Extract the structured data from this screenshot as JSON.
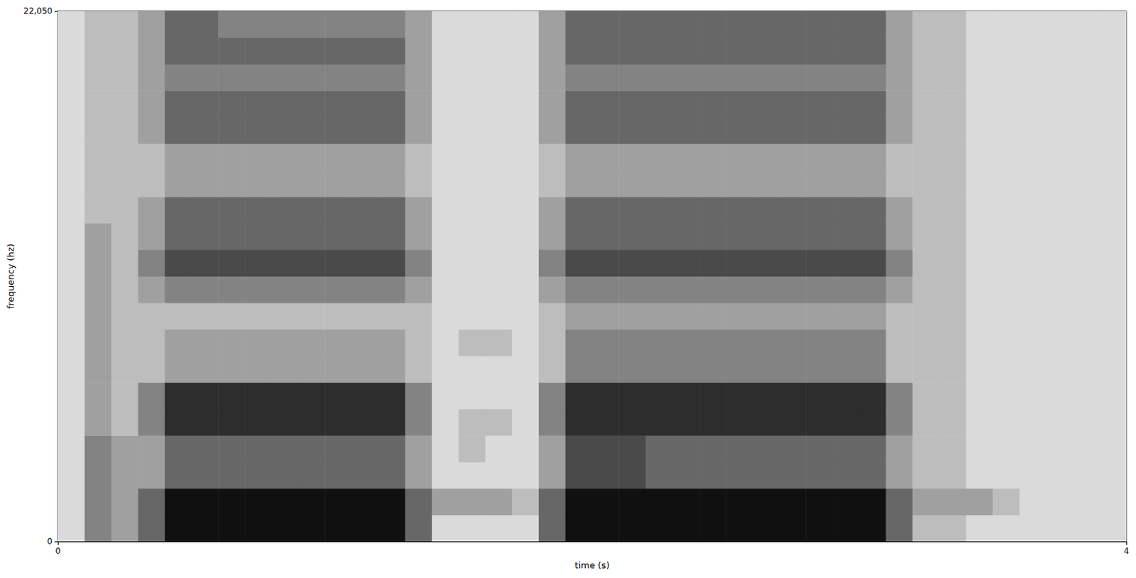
{
  "chart_data": {
    "type": "heatmap",
    "xlabel": "time (s)",
    "ylabel": "frequency (hz)",
    "xlim": [
      0,
      4
    ],
    "xticks": [
      0,
      4
    ],
    "ylim": [
      0,
      22050
    ],
    "yticks": [
      0,
      22050
    ],
    "grid": false,
    "x": [
      0,
      0.1,
      0.2,
      0.3,
      0.4,
      0.5,
      0.6,
      0.7,
      0.8,
      0.9,
      1.0,
      1.1,
      1.2,
      1.3,
      1.4,
      1.5,
      1.6,
      1.7,
      1.8,
      1.9,
      2.0,
      2.1,
      2.2,
      2.3,
      2.4,
      2.5,
      2.6,
      2.7,
      2.8,
      2.9,
      3.0,
      3.1,
      3.2,
      3.3,
      3.4,
      3.5,
      3.6,
      3.7,
      3.8,
      3.9
    ],
    "y": [
      0,
      1102.5,
      2205,
      3307.5,
      4410,
      5512.5,
      6615,
      7717.5,
      8820,
      9922.5,
      11025,
      12127.5,
      13230,
      14332.5,
      15435,
      16537.5,
      17640,
      18742.5,
      19845,
      20947.5
    ],
    "cells": [
      [
        2,
        2,
        2,
        2,
        2,
        2,
        2,
        2,
        2,
        2,
        2,
        2,
        2,
        2,
        2,
        2,
        2,
        2,
        2,
        2
      ],
      [
        5,
        5,
        5,
        5,
        4,
        4,
        4,
        4,
        4,
        4,
        4,
        4,
        3,
        3,
        3,
        3,
        3,
        3,
        3,
        3
      ],
      [
        4,
        4,
        4,
        4,
        3,
        3,
        3,
        3,
        3,
        3,
        3,
        3,
        3,
        3,
        3,
        3,
        3,
        3,
        3,
        3
      ],
      [
        6,
        6,
        4,
        4,
        5,
        5,
        3,
        3,
        3,
        4,
        5,
        4,
        4,
        3,
        3,
        4,
        4,
        4,
        4,
        4
      ],
      [
        9,
        9,
        6,
        6,
        8,
        8,
        4,
        4,
        3,
        5,
        7,
        6,
        6,
        4,
        4,
        6,
        6,
        5,
        6,
        6
      ],
      [
        9,
        9,
        6,
        6,
        8,
        8,
        4,
        4,
        3,
        5,
        7,
        6,
        6,
        4,
        4,
        6,
        6,
        5,
        6,
        6
      ],
      [
        9,
        9,
        6,
        6,
        8,
        8,
        4,
        4,
        3,
        5,
        7,
        6,
        6,
        4,
        4,
        6,
        6,
        5,
        6,
        5
      ],
      [
        9,
        9,
        6,
        6,
        8,
        8,
        4,
        4,
        3,
        5,
        7,
        6,
        6,
        4,
        4,
        6,
        6,
        5,
        6,
        5
      ],
      [
        9,
        9,
        6,
        6,
        8,
        8,
        4,
        4,
        3,
        5,
        7,
        6,
        6,
        4,
        4,
        6,
        6,
        5,
        6,
        5
      ],
      [
        9,
        9,
        6,
        6,
        8,
        8,
        4,
        4,
        3,
        5,
        7,
        6,
        6,
        4,
        4,
        6,
        6,
        5,
        6,
        5
      ],
      [
        9,
        9,
        6,
        6,
        8,
        8,
        4,
        4,
        3,
        5,
        7,
        6,
        6,
        4,
        4,
        6,
        6,
        5,
        6,
        5
      ],
      [
        9,
        9,
        6,
        6,
        8,
        8,
        4,
        4,
        3,
        5,
        7,
        6,
        6,
        4,
        4,
        6,
        6,
        5,
        6,
        5
      ],
      [
        9,
        9,
        6,
        6,
        8,
        8,
        4,
        4,
        3,
        5,
        7,
        6,
        6,
        4,
        4,
        6,
        6,
        5,
        6,
        5
      ],
      [
        6,
        6,
        4,
        4,
        5,
        5,
        3,
        3,
        3,
        4,
        5,
        4,
        4,
        3,
        3,
        4,
        4,
        4,
        4,
        4
      ],
      [
        2,
        4,
        2,
        2,
        2,
        2,
        2,
        2,
        2,
        2,
        2,
        2,
        2,
        2,
        2,
        2,
        2,
        2,
        2,
        2
      ],
      [
        2,
        4,
        2,
        3,
        3,
        2,
        2,
        3,
        2,
        2,
        2,
        2,
        2,
        2,
        2,
        2,
        2,
        2,
        2,
        2
      ],
      [
        2,
        4,
        2,
        2,
        3,
        2,
        2,
        3,
        2,
        2,
        2,
        2,
        2,
        2,
        2,
        2,
        2,
        2,
        2,
        2
      ],
      [
        2,
        3,
        2,
        2,
        2,
        2,
        2,
        2,
        2,
        2,
        2,
        2,
        2,
        2,
        2,
        2,
        2,
        2,
        2,
        2
      ],
      [
        6,
        6,
        4,
        4,
        5,
        5,
        3,
        3,
        3,
        4,
        5,
        4,
        4,
        3,
        3,
        4,
        4,
        4,
        4,
        4
      ],
      [
        9,
        9,
        7,
        7,
        8,
        8,
        5,
        5,
        4,
        5,
        7,
        6,
        6,
        4,
        4,
        6,
        6,
        5,
        6,
        6
      ],
      [
        9,
        9,
        7,
        7,
        8,
        8,
        5,
        5,
        4,
        5,
        7,
        6,
        6,
        4,
        4,
        6,
        6,
        5,
        6,
        6
      ],
      [
        9,
        9,
        7,
        7,
        8,
        8,
        5,
        5,
        4,
        5,
        7,
        6,
        6,
        4,
        4,
        6,
        6,
        5,
        6,
        6
      ],
      [
        9,
        9,
        6,
        6,
        8,
        8,
        5,
        5,
        4,
        5,
        7,
        6,
        6,
        4,
        4,
        6,
        6,
        5,
        6,
        6
      ],
      [
        9,
        9,
        6,
        6,
        8,
        8,
        5,
        5,
        4,
        5,
        7,
        6,
        6,
        4,
        4,
        6,
        6,
        5,
        6,
        6
      ],
      [
        9,
        9,
        6,
        6,
        8,
        8,
        5,
        5,
        4,
        5,
        7,
        6,
        6,
        4,
        4,
        6,
        6,
        5,
        6,
        6
      ],
      [
        9,
        9,
        6,
        6,
        8,
        8,
        5,
        5,
        4,
        5,
        7,
        6,
        6,
        4,
        4,
        6,
        6,
        5,
        6,
        6
      ],
      [
        9,
        9,
        6,
        6,
        8,
        8,
        5,
        5,
        4,
        5,
        7,
        6,
        6,
        4,
        4,
        6,
        6,
        5,
        6,
        6
      ],
      [
        9,
        9,
        6,
        6,
        8,
        8,
        5,
        5,
        4,
        5,
        7,
        6,
        6,
        4,
        4,
        6,
        6,
        5,
        6,
        6
      ],
      [
        9,
        9,
        6,
        6,
        8,
        8,
        5,
        5,
        4,
        5,
        7,
        6,
        6,
        4,
        4,
        6,
        6,
        5,
        6,
        6
      ],
      [
        9,
        9,
        6,
        6,
        8,
        8,
        5,
        5,
        4,
        5,
        7,
        6,
        6,
        4,
        4,
        6,
        6,
        5,
        6,
        6
      ],
      [
        9,
        9,
        6,
        6,
        8,
        8,
        5,
        5,
        4,
        5,
        7,
        6,
        6,
        4,
        4,
        6,
        6,
        5,
        6,
        6
      ],
      [
        6,
        6,
        4,
        4,
        5,
        5,
        3,
        3,
        3,
        4,
        5,
        4,
        4,
        3,
        3,
        4,
        4,
        4,
        4,
        4
      ],
      [
        3,
        4,
        3,
        3,
        3,
        3,
        3,
        3,
        3,
        3,
        3,
        3,
        3,
        3,
        3,
        3,
        3,
        3,
        3,
        3
      ],
      [
        3,
        4,
        3,
        3,
        3,
        3,
        3,
        3,
        3,
        3,
        3,
        3,
        3,
        3,
        3,
        3,
        3,
        3,
        3,
        3
      ],
      [
        2,
        4,
        2,
        2,
        2,
        2,
        2,
        2,
        2,
        2,
        2,
        2,
        2,
        2,
        2,
        2,
        2,
        2,
        2,
        2
      ],
      [
        2,
        3,
        2,
        2,
        2,
        2,
        2,
        2,
        2,
        2,
        2,
        2,
        2,
        2,
        2,
        2,
        2,
        2,
        2,
        2
      ],
      [
        2,
        2,
        2,
        2,
        2,
        2,
        2,
        2,
        2,
        2,
        2,
        2,
        2,
        2,
        2,
        2,
        2,
        2,
        2,
        2
      ],
      [
        2,
        2,
        2,
        2,
        2,
        2,
        2,
        2,
        2,
        2,
        2,
        2,
        2,
        2,
        2,
        2,
        2,
        2,
        2,
        2
      ],
      [
        2,
        2,
        2,
        2,
        2,
        2,
        2,
        2,
        2,
        2,
        2,
        2,
        2,
        2,
        2,
        2,
        2,
        2,
        2,
        2
      ],
      [
        2,
        2,
        2,
        2,
        2,
        2,
        2,
        2,
        2,
        2,
        2,
        2,
        2,
        2,
        2,
        2,
        2,
        2,
        2,
        2
      ]
    ]
  }
}
